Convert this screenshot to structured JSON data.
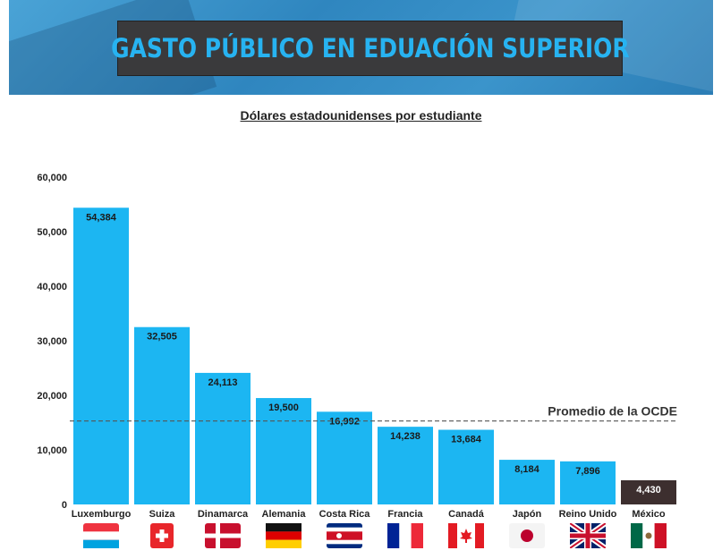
{
  "header": {
    "title": "GASTO PÚBLICO EN EDUACIÓN SUPERIOR"
  },
  "chart_data": {
    "type": "bar",
    "title": "",
    "subtitle": "Dólares estadounidenses por estudiante",
    "categories": [
      "Luxemburgo",
      "Suiza",
      "Dinamarca",
      "Alemania",
      "Costa Rica",
      "Francia",
      "Canadá",
      "Japón",
      "Reino Unido",
      "México"
    ],
    "values": [
      54384,
      32505,
      24113,
      19500,
      16992,
      14238,
      13684,
      8184,
      7896,
      4430
    ],
    "value_labels": [
      "54,384",
      "32,505",
      "24,113",
      "19,500",
      "16,992",
      "14,238",
      "13,684",
      "8,184",
      "7,896",
      "4,430"
    ],
    "ylim": [
      0,
      60000
    ],
    "yticks": [
      0,
      10000,
      20000,
      30000,
      40000,
      50000,
      60000
    ],
    "ytick_labels": [
      "0",
      "10,000",
      "20,000",
      "30,000",
      "40,000",
      "50,000",
      "60,000"
    ],
    "reference_line": {
      "label": "Promedio de la OCDE",
      "value": 15300
    },
    "bar_color": "#1cb6f2",
    "highlight_color": "#3d2f2f",
    "highlight_category": "México",
    "flags": [
      "luxembourg-flag-icon",
      "switzerland-flag-icon",
      "denmark-flag-icon",
      "germany-flag-icon",
      "costa-rica-flag-icon",
      "france-flag-icon",
      "canada-flag-icon",
      "japan-flag-icon",
      "uk-flag-icon",
      "mexico-flag-icon"
    ]
  }
}
